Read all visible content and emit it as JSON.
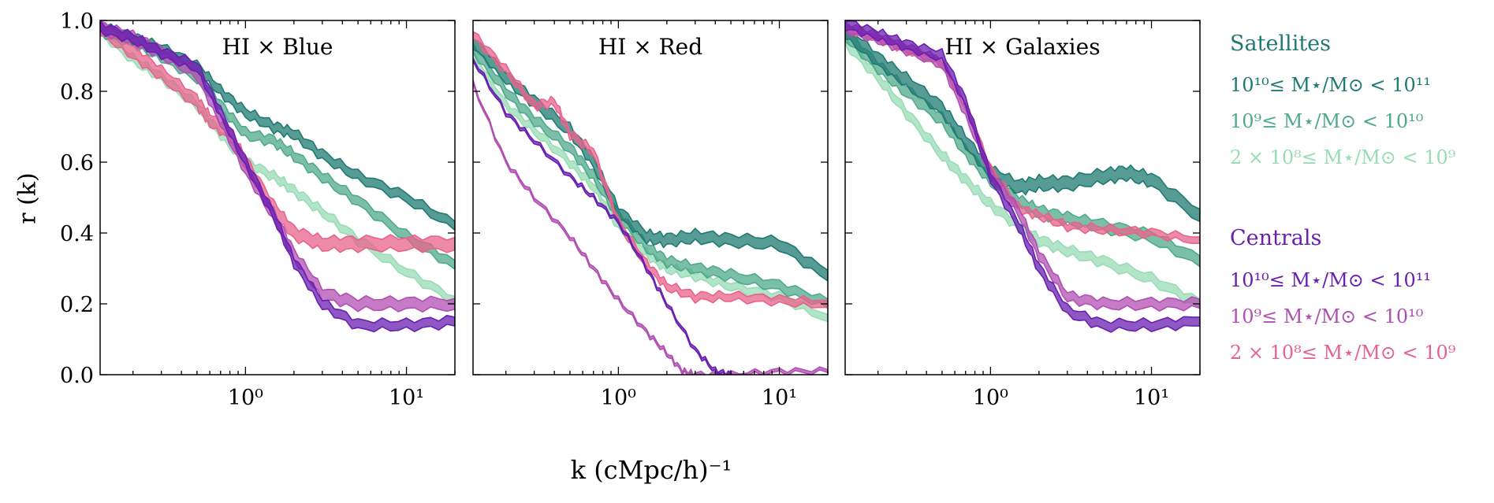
{
  "chart_data": {
    "type": "area",
    "xscale": "log",
    "xlim": [
      0.125,
      20
    ],
    "ylim": [
      0,
      1
    ],
    "grid": false,
    "xlabel": "k (cMpc/h)⁻¹",
    "ylabel": "r (k)",
    "xticks": [
      "10⁰",
      "10¹"
    ],
    "yticks": [
      "0.0",
      "0.2",
      "0.4",
      "0.6",
      "0.8",
      "1.0"
    ],
    "legend": {
      "placement": "right",
      "groups": [
        {
          "title": "Satellites",
          "title_color": "#1f7a72",
          "entries": [
            {
              "label": "10¹⁰≤ M⋆/M⊙ < 10¹¹",
              "color": "#1f7a72"
            },
            {
              "label": "10⁹≤ M⋆/M⊙ < 10¹⁰",
              "color": "#4fa98c"
            },
            {
              "label": "2 × 10⁸≤ M⋆/M⊙ < 10⁹",
              "color": "#98dcb5"
            }
          ]
        },
        {
          "title": "Centrals",
          "title_color": "#6a1fb0",
          "entries": [
            {
              "label": "10¹⁰≤ M⋆/M⊙ < 10¹¹",
              "color": "#6a1fb0"
            },
            {
              "label": "10⁹≤ M⋆/M⊙ < 10¹⁰",
              "color": "#b14fb3"
            },
            {
              "label": "2 × 10⁸≤ M⋆/M⊙ < 10⁹",
              "color": "#e8638c"
            }
          ]
        }
      ]
    },
    "panels": [
      {
        "title": "HI × Blue",
        "series": [
          {
            "color": "#98dcb5",
            "x": [
              0.125,
              0.2,
              0.3,
              0.5,
              0.7,
              1,
              1.5,
              2,
              3,
              5,
              10,
              20
            ],
            "y": [
              0.97,
              0.89,
              0.84,
              0.76,
              0.68,
              0.6,
              0.56,
              0.52,
              0.46,
              0.38,
              0.29,
              0.21
            ],
            "w": 0.022
          },
          {
            "color": "#4fa98c",
            "x": [
              0.125,
              0.2,
              0.3,
              0.5,
              0.7,
              1,
              1.5,
              2,
              3,
              5,
              10,
              20
            ],
            "y": [
              0.97,
              0.94,
              0.9,
              0.84,
              0.76,
              0.68,
              0.66,
              0.62,
              0.56,
              0.49,
              0.39,
              0.31
            ],
            "w": 0.025
          },
          {
            "color": "#1f7a72",
            "x": [
              0.125,
              0.2,
              0.3,
              0.5,
              0.7,
              1,
              1.5,
              2,
              3,
              5,
              10,
              20
            ],
            "y": [
              0.98,
              0.95,
              0.92,
              0.87,
              0.8,
              0.74,
              0.7,
              0.68,
              0.62,
              0.56,
              0.5,
              0.42
            ],
            "w": 0.025
          },
          {
            "color": "#e8638c",
            "x": [
              0.125,
              0.2,
              0.3,
              0.5,
              0.6,
              0.8,
              1,
              1.5,
              2,
              3,
              5,
              10,
              20
            ],
            "y": [
              0.98,
              0.91,
              0.85,
              0.77,
              0.72,
              0.68,
              0.6,
              0.47,
              0.4,
              0.37,
              0.37,
              0.37,
              0.37
            ],
            "w": 0.035
          },
          {
            "color": "#b14fb3",
            "x": [
              0.125,
              0.2,
              0.3,
              0.5,
              0.7,
              1,
              1.5,
              2,
              3,
              5,
              10,
              20
            ],
            "y": [
              0.98,
              0.95,
              0.91,
              0.85,
              0.72,
              0.58,
              0.45,
              0.34,
              0.23,
              0.2,
              0.2,
              0.2
            ],
            "w": 0.03
          },
          {
            "color": "#6a1fb0",
            "x": [
              0.125,
              0.2,
              0.3,
              0.5,
              0.7,
              1,
              1.5,
              2,
              3,
              5,
              10,
              20
            ],
            "y": [
              0.98,
              0.95,
              0.91,
              0.87,
              0.74,
              0.6,
              0.45,
              0.32,
              0.2,
              0.14,
              0.14,
              0.15
            ],
            "w": 0.025
          }
        ]
      },
      {
        "title": "HI × Red",
        "series": [
          {
            "color": "#98dcb5",
            "x": [
              0.125,
              0.2,
              0.3,
              0.5,
              0.7,
              1,
              1.5,
              2,
              3,
              5,
              10,
              20
            ],
            "y": [
              0.9,
              0.76,
              0.69,
              0.6,
              0.53,
              0.42,
              0.34,
              0.3,
              0.28,
              0.25,
              0.22,
              0.16
            ],
            "w": 0.02
          },
          {
            "color": "#4fa98c",
            "x": [
              0.125,
              0.2,
              0.3,
              0.5,
              0.7,
              1,
              1.5,
              2,
              3,
              5,
              10,
              20
            ],
            "y": [
              0.92,
              0.8,
              0.72,
              0.64,
              0.56,
              0.45,
              0.36,
              0.32,
              0.3,
              0.28,
              0.25,
              0.2
            ],
            "w": 0.025
          },
          {
            "color": "#1f7a72",
            "x": [
              0.125,
              0.2,
              0.3,
              0.5,
              0.7,
              1,
              1.5,
              2,
              3,
              5,
              10,
              20
            ],
            "y": [
              0.94,
              0.84,
              0.77,
              0.69,
              0.6,
              0.46,
              0.39,
              0.38,
              0.39,
              0.38,
              0.37,
              0.28
            ],
            "w": 0.03
          },
          {
            "color": "#e8638c",
            "x": [
              0.125,
              0.2,
              0.3,
              0.4,
              0.5,
              0.7,
              1,
              1.5,
              2,
              3,
              5,
              10,
              20
            ],
            "y": [
              0.96,
              0.86,
              0.76,
              0.77,
              0.68,
              0.63,
              0.43,
              0.31,
              0.25,
              0.22,
              0.22,
              0.21,
              0.2
            ],
            "w": 0.02
          },
          {
            "color": "#b14fb3",
            "x": [
              0.125,
              0.2,
              0.3,
              0.5,
              0.7,
              1,
              1.5,
              2,
              2.5,
              3,
              5,
              10,
              20
            ],
            "y": [
              0.82,
              0.6,
              0.5,
              0.39,
              0.3,
              0.21,
              0.12,
              0.06,
              0.01,
              0,
              0,
              0.01,
              0.01
            ],
            "w": 0.008
          },
          {
            "color": "#6a1fb0",
            "x": [
              0.125,
              0.2,
              0.3,
              0.5,
              0.7,
              1,
              1.5,
              2,
              3,
              4,
              5
            ],
            "y": [
              0.89,
              0.74,
              0.66,
              0.56,
              0.5,
              0.43,
              0.3,
              0.2,
              0.07,
              0.01,
              0
            ],
            "w": 0.008
          }
        ]
      },
      {
        "title": "HI × Galaxies",
        "series": [
          {
            "color": "#98dcb5",
            "x": [
              0.125,
              0.2,
              0.3,
              0.5,
              0.7,
              1,
              1.5,
              2,
              3,
              5,
              10,
              20
            ],
            "y": [
              0.94,
              0.84,
              0.74,
              0.62,
              0.55,
              0.48,
              0.42,
              0.38,
              0.35,
              0.32,
              0.27,
              0.2
            ],
            "w": 0.025
          },
          {
            "color": "#4fa98c",
            "x": [
              0.125,
              0.2,
              0.3,
              0.5,
              0.7,
              1,
              1.5,
              2,
              3,
              5,
              10,
              20
            ],
            "y": [
              0.96,
              0.87,
              0.8,
              0.72,
              0.63,
              0.55,
              0.49,
              0.46,
              0.44,
              0.42,
              0.39,
              0.32
            ],
            "w": 0.03
          },
          {
            "color": "#1f7a72",
            "x": [
              0.125,
              0.2,
              0.3,
              0.5,
              0.7,
              1,
              1.5,
              2,
              3,
              5,
              7,
              10,
              20
            ],
            "y": [
              0.97,
              0.89,
              0.83,
              0.75,
              0.66,
              0.57,
              0.53,
              0.54,
              0.54,
              0.56,
              0.57,
              0.55,
              0.45
            ],
            "w": 0.035
          },
          {
            "color": "#e8638c",
            "x": [
              0.125,
              0.2,
              0.3,
              0.5,
              0.7,
              1,
              1.5,
              2,
              3,
              5,
              10,
              20
            ],
            "y": [
              0.98,
              0.95,
              0.92,
              0.88,
              0.76,
              0.58,
              0.47,
              0.45,
              0.42,
              0.41,
              0.4,
              0.38
            ],
            "w": 0.018
          },
          {
            "color": "#b14fb3",
            "x": [
              0.125,
              0.2,
              0.3,
              0.5,
              0.7,
              1,
              1.5,
              2,
              3,
              5,
              10,
              20
            ],
            "y": [
              0.98,
              0.95,
              0.92,
              0.88,
              0.74,
              0.57,
              0.46,
              0.34,
              0.22,
              0.2,
              0.2,
              0.2
            ],
            "w": 0.025
          },
          {
            "color": "#6a1fb0",
            "x": [
              0.125,
              0.2,
              0.3,
              0.5,
              0.7,
              1,
              1.5,
              2,
              3,
              5,
              10,
              20
            ],
            "y": [
              0.99,
              0.96,
              0.93,
              0.9,
              0.77,
              0.56,
              0.42,
              0.3,
              0.18,
              0.14,
              0.14,
              0.15
            ],
            "w": 0.025
          }
        ]
      }
    ]
  }
}
